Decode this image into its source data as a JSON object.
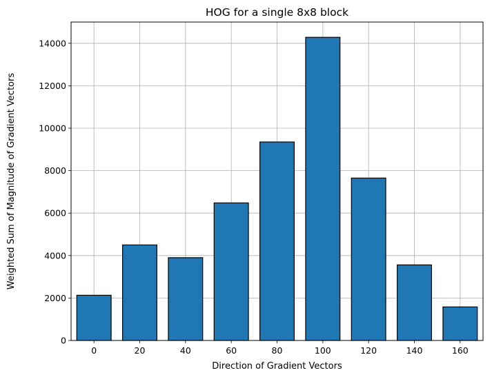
{
  "chart_data": {
    "type": "bar",
    "title": "HOG for a single 8x8 block",
    "xlabel": "Direction of Gradient Vectors",
    "ylabel": "Weighted Sum of Magnitude of Gradient Vectors",
    "categories": [
      "0",
      "20",
      "40",
      "60",
      "80",
      "100",
      "120",
      "140",
      "160"
    ],
    "x": [
      0,
      20,
      40,
      60,
      80,
      100,
      120,
      140,
      160
    ],
    "values": [
      2130,
      4500,
      3900,
      6480,
      9350,
      14280,
      7650,
      3560,
      1580
    ],
    "xlim": [
      -10,
      170
    ],
    "ylim": [
      0,
      15000
    ],
    "bar_width": 15,
    "xticks": [
      0,
      20,
      40,
      60,
      80,
      100,
      120,
      140,
      160
    ],
    "yticks": [
      0,
      2000,
      4000,
      6000,
      8000,
      10000,
      12000,
      14000
    ],
    "grid": true,
    "bar_color": "#1f77b4",
    "edge_color": "#000000"
  }
}
